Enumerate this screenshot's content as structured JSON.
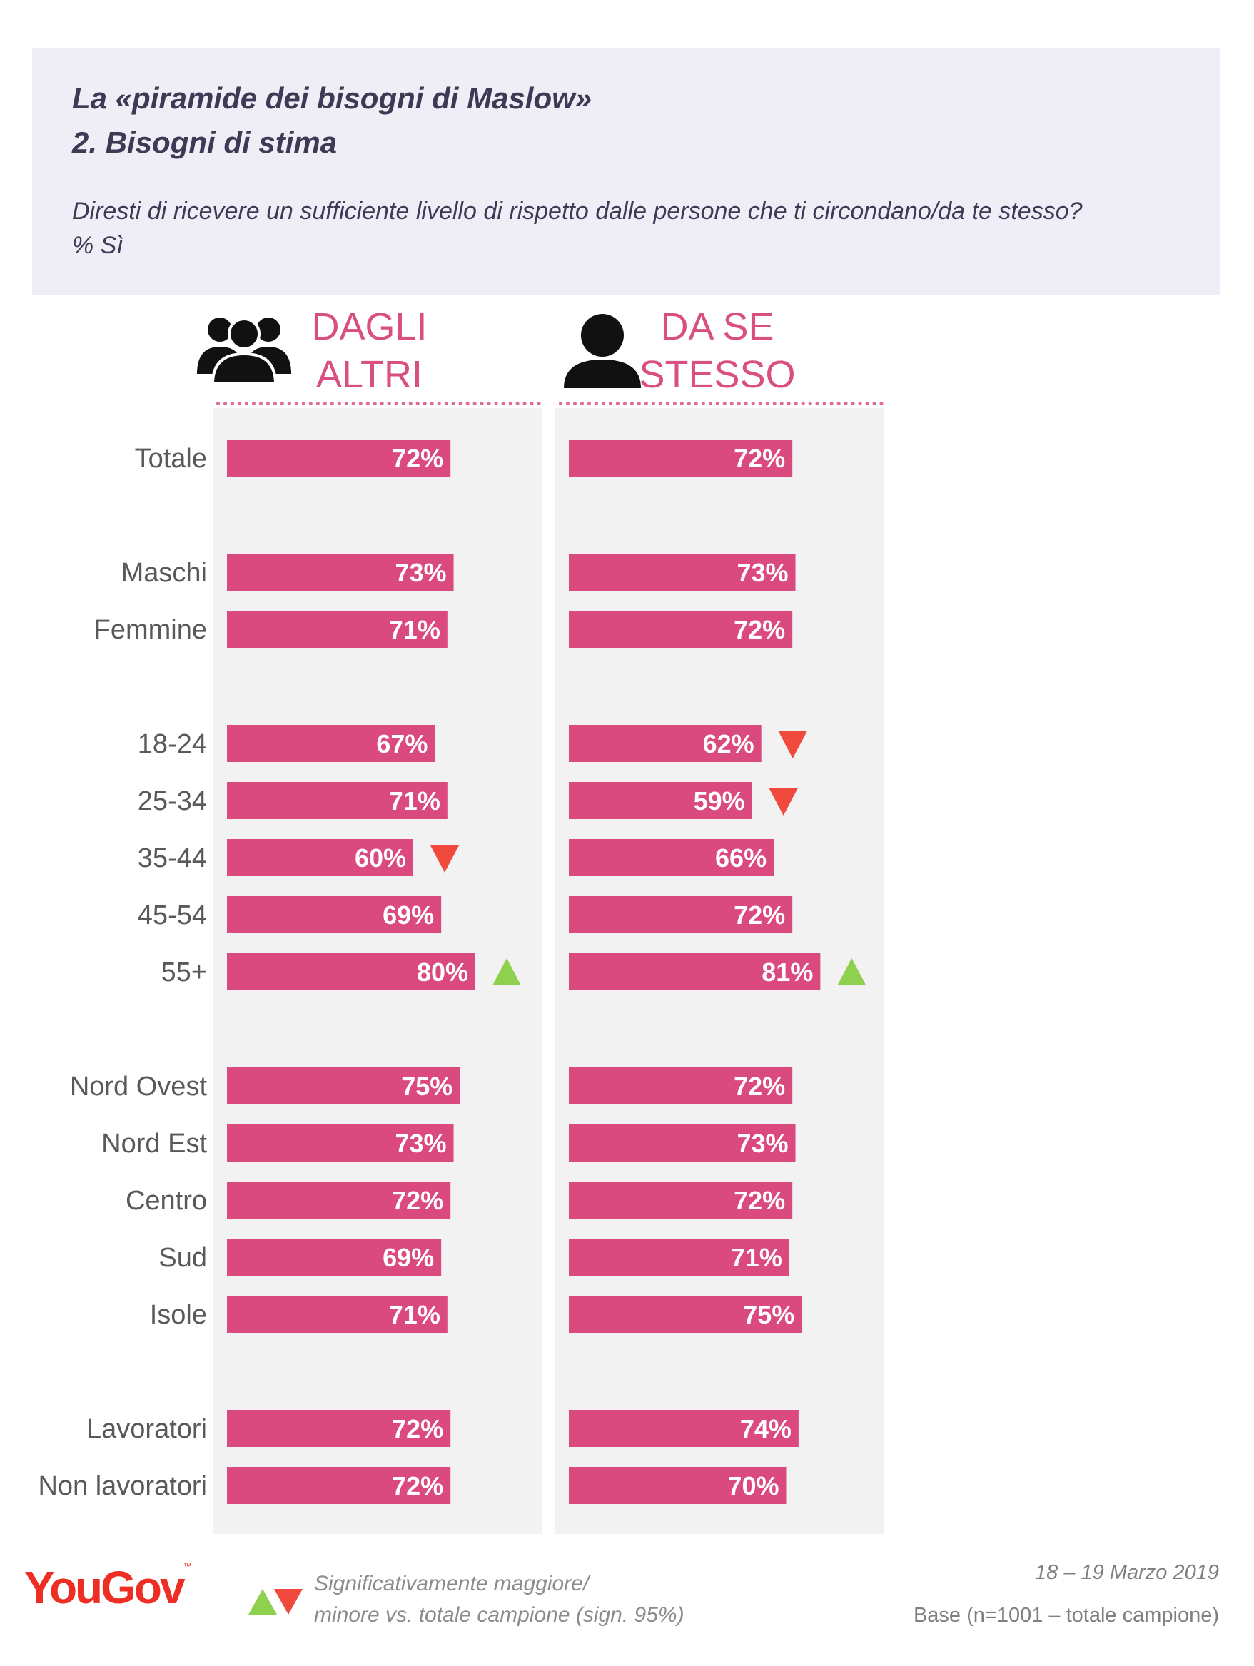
{
  "header": {
    "title_line1": "La «piramide dei bisogni di Maslow»",
    "title_line2": "2. Bisogni di stima",
    "question_line1": "Diresti di ricevere un sufficiente livello di rispetto dalle persone che ti circondano/da te stesso?",
    "question_line2": "% Sì"
  },
  "columns": {
    "col1_line1": "DAGLI",
    "col1_line2": "ALTRI",
    "col2_line1": "DA SE",
    "col2_line2": "STESSO",
    "col1_icon": "group-icon",
    "col2_icon": "person-icon"
  },
  "chart_data": {
    "type": "bar",
    "orientation": "horizontal",
    "categories": [
      "Totale",
      "Maschi",
      "Femmine",
      "18-24",
      "25-34",
      "35-44",
      "45-54",
      "55+",
      "Nord Ovest",
      "Nord Est",
      "Centro",
      "Sud",
      "Isole",
      "Lavoratori",
      "Non lavoratori"
    ],
    "groups": [
      [
        0
      ],
      [
        1,
        2
      ],
      [
        3,
        4,
        5,
        6,
        7
      ],
      [
        8,
        9,
        10,
        11,
        12
      ],
      [
        13,
        14
      ]
    ],
    "series": [
      {
        "name": "DAGLI ALTRI",
        "values": [
          72,
          73,
          71,
          67,
          71,
          60,
          69,
          80,
          75,
          73,
          72,
          69,
          71,
          72,
          72
        ],
        "significance": [
          "",
          "",
          "",
          "",
          "",
          "down",
          "",
          "up",
          "",
          "",
          "",
          "",
          "",
          "",
          ""
        ]
      },
      {
        "name": "DA SE STESSO",
        "values": [
          72,
          73,
          72,
          62,
          59,
          66,
          72,
          81,
          72,
          73,
          72,
          71,
          75,
          74,
          70
        ],
        "significance": [
          "",
          "",
          "",
          "down",
          "down",
          "",
          "",
          "up",
          "",
          "",
          "",
          "",
          "",
          "",
          ""
        ]
      }
    ],
    "value_suffix": "%",
    "colors": {
      "bar": "#db4a7e",
      "column_bg": "#f2f2f2",
      "up": "#8fd14f",
      "down": "#ef4a3d",
      "label": "#595959"
    }
  },
  "legend": {
    "line1": "Significativamente maggiore/",
    "line2": "minore vs. totale campione (sign. 95%)",
    "icon": "up-down-triangles-icon"
  },
  "footer": {
    "date": "18 – 19 Marzo 2019",
    "base": "Base (n=1001 – totale campione)",
    "logo": "YouGov"
  }
}
